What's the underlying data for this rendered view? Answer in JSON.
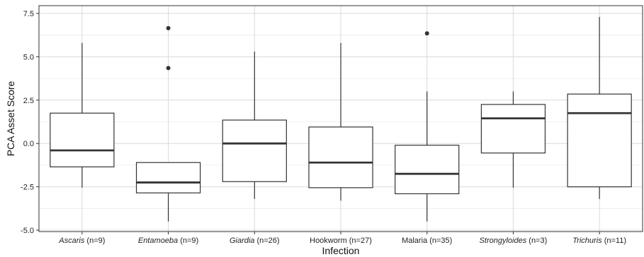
{
  "chart_data": {
    "type": "box",
    "xlabel": "Infection",
    "ylabel": "PCA Asset Score",
    "ylim": [
      -5.0,
      7.5
    ],
    "yticks": [
      "-5.0",
      "-2.5",
      "0.0",
      "2.5",
      "5.0",
      "7.5"
    ],
    "grid": true,
    "categories": [
      {
        "name": "Ascaris",
        "italic": true,
        "n": " (n=9)"
      },
      {
        "name": "Entamoeba",
        "italic": true,
        "n": " (n=9)"
      },
      {
        "name": "Giardia",
        "italic": true,
        "n": " (n=26)"
      },
      {
        "name": "Hookworm",
        "italic": false,
        "n": " (n=27)"
      },
      {
        "name": "Malaria",
        "italic": false,
        "n": " (n=35)"
      },
      {
        "name": "Strongyloides",
        "italic": true,
        "n": " (n=3)"
      },
      {
        "name": "Trichuris",
        "italic": true,
        "n": " (n=11)"
      }
    ],
    "boxes": [
      {
        "whisker_low": -2.55,
        "q1": -1.35,
        "median": -0.4,
        "q3": 1.75,
        "whisker_high": 5.8,
        "outliers": []
      },
      {
        "whisker_low": -4.5,
        "q1": -2.85,
        "median": -2.25,
        "q3": -1.1,
        "whisker_high": -1.1,
        "outliers": [
          6.65,
          4.35
        ]
      },
      {
        "whisker_low": -3.2,
        "q1": -2.2,
        "median": 0.0,
        "q3": 1.35,
        "whisker_high": 5.3,
        "outliers": []
      },
      {
        "whisker_low": -3.3,
        "q1": -2.55,
        "median": -1.1,
        "q3": 0.95,
        "whisker_high": 5.8,
        "outliers": []
      },
      {
        "whisker_low": -4.5,
        "q1": -2.9,
        "median": -1.75,
        "q3": -0.1,
        "whisker_high": 3.0,
        "outliers": [
          6.35
        ]
      },
      {
        "whisker_low": -2.55,
        "q1": -0.55,
        "median": 1.45,
        "q3": 2.25,
        "whisker_high": 3.0,
        "outliers": []
      },
      {
        "whisker_low": -3.2,
        "q1": -2.5,
        "median": 1.75,
        "q3": 2.85,
        "whisker_high": 7.3,
        "outliers": []
      }
    ],
    "colors": {
      "box_fill": "#ffffff",
      "line": "#333333",
      "grid_major": "#d9d9d9",
      "grid_minor": "#ebebeb",
      "panel_border": "#333333"
    }
  }
}
